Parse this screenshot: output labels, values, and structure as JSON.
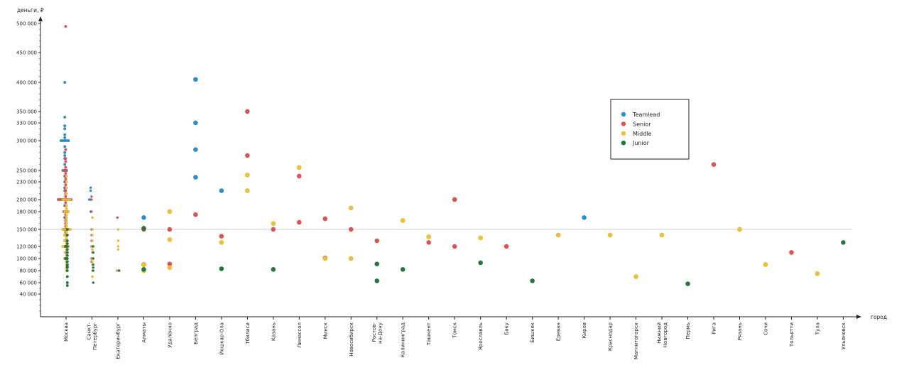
{
  "chart_data": {
    "type": "scatter",
    "title": "",
    "xlabel": "город",
    "ylabel": "деньги, ₽",
    "ylim": [
      0,
      510000
    ],
    "y_ticks": [
      40000,
      60000,
      80000,
      100000,
      120000,
      150000,
      180000,
      200000,
      230000,
      250000,
      300000,
      330000,
      350000,
      400000,
      450000,
      500000
    ],
    "y_tick_labels": [
      "40 000",
      "60 000",
      "80 000",
      "100 000",
      "120 000",
      "150 000",
      "180 000",
      "200 000",
      "230 000",
      "250 000",
      "300 000",
      "330 000",
      "350 000",
      "400 000",
      "450 000",
      "500 000"
    ],
    "y_scale": "piecewise-linear between labeled ticks",
    "reference_line": 150000,
    "grid": false,
    "legend_position": "upper-right",
    "categories": [
      "Москва",
      "Санкт-Петербург",
      "Екатеринбург",
      "Алматы",
      "Удалённо",
      "Белград",
      "Йошкар-Ола",
      "Тбилиси",
      "Казань",
      "Лимассол",
      "Минск",
      "Новосибирск",
      "Ростов-на-Дону",
      "Калининград",
      "Ташкент",
      "Томск",
      "Ярославль",
      "Баку",
      "Бишкек",
      "Ереван",
      "Киров",
      "Краснодар",
      "Магнитогорск",
      "Нижний Новгород",
      "Пермь",
      "Рига",
      "Рязань",
      "Сочи",
      "Тольятти",
      "Тула",
      "Ульяновск"
    ],
    "category_labels": [
      [
        "Москва"
      ],
      [
        "Санкт-",
        "Петербург"
      ],
      [
        "Екатеринбург"
      ],
      [
        "Алматы"
      ],
      [
        "Удалённо"
      ],
      [
        "Белград"
      ],
      [
        "Йошкар-Ола"
      ],
      [
        "Тбилиси"
      ],
      [
        "Казань"
      ],
      [
        "Лимассол"
      ],
      [
        "Минск"
      ],
      [
        "Новосибирск"
      ],
      [
        "Ростов-",
        "на-Дону"
      ],
      [
        "Калининград"
      ],
      [
        "Ташкент"
      ],
      [
        "Томск"
      ],
      [
        "Ярославль"
      ],
      [
        "Баку"
      ],
      [
        "Бишкек"
      ],
      [
        "Ереван"
      ],
      [
        "Киров"
      ],
      [
        "Краснодар"
      ],
      [
        "Магнитогорск"
      ],
      [
        "Нижний",
        "Новгород"
      ],
      [
        "Пермь"
      ],
      [
        "Рига"
      ],
      [
        "Рязань"
      ],
      [
        "Сочи"
      ],
      [
        "Тольятти"
      ],
      [
        "Тула"
      ],
      [
        "Ульяновск"
      ]
    ],
    "dense_categories": [
      "Москва",
      "Санкт-Петербург",
      "Екатеринбург"
    ],
    "series": [
      {
        "name": "Teamlead",
        "color": "#2a8fcf",
        "points": [
          [
            "Москва",
            400000
          ],
          [
            "Москва",
            340000
          ],
          [
            "Москва",
            325000
          ],
          [
            "Москва",
            320000
          ],
          [
            "Москва",
            310000
          ],
          [
            "Москва",
            305000
          ],
          [
            "Москва",
            300000
          ],
          [
            "Москва",
            300000
          ],
          [
            "Москва",
            300000
          ],
          [
            "Москва",
            300000
          ],
          [
            "Москва",
            300000
          ],
          [
            "Москва",
            290000
          ],
          [
            "Москва",
            280000
          ],
          [
            "Москва",
            275000
          ],
          [
            "Москва",
            270000
          ],
          [
            "Москва",
            260000
          ],
          [
            "Москва",
            250000
          ],
          [
            "Москва",
            250000
          ],
          [
            "Москва",
            250000
          ],
          [
            "Москва",
            240000
          ],
          [
            "Москва",
            230000
          ],
          [
            "Москва",
            220000
          ],
          [
            "Москва",
            215000
          ],
          [
            "Москва",
            200000
          ],
          [
            "Москва",
            200000
          ],
          [
            "Москва",
            200000
          ],
          [
            "Москва",
            190000
          ],
          [
            "Москва",
            180000
          ],
          [
            "Москва",
            170000
          ],
          [
            "Москва",
            150000
          ],
          [
            "Санкт-Петербург",
            220000
          ],
          [
            "Санкт-Петербург",
            215000
          ],
          [
            "Санкт-Петербург",
            200000
          ],
          [
            "Санкт-Петербург",
            200000
          ],
          [
            "Санкт-Петербург",
            180000
          ],
          [
            "Алматы",
            170000
          ],
          [
            "Белград",
            405000
          ],
          [
            "Белград",
            330000
          ],
          [
            "Белград",
            285000
          ],
          [
            "Белград",
            238000
          ],
          [
            "Йошкар-Ола",
            215000
          ],
          [
            "Киров",
            170000
          ]
        ]
      },
      {
        "name": "Senior",
        "color": "#e05252",
        "points": [
          [
            "Москва",
            495000
          ],
          [
            "Москва",
            285000
          ],
          [
            "Москва",
            270000
          ],
          [
            "Москва",
            265000
          ],
          [
            "Москва",
            255000
          ],
          [
            "Москва",
            250000
          ],
          [
            "Москва",
            250000
          ],
          [
            "Москва",
            245000
          ],
          [
            "Москва",
            240000
          ],
          [
            "Москва",
            235000
          ],
          [
            "Москва",
            230000
          ],
          [
            "Москва",
            225000
          ],
          [
            "Москва",
            220000
          ],
          [
            "Москва",
            215000
          ],
          [
            "Москва",
            210000
          ],
          [
            "Москва",
            205000
          ],
          [
            "Москва",
            200000
          ],
          [
            "Москва",
            200000
          ],
          [
            "Москва",
            200000
          ],
          [
            "Москва",
            200000
          ],
          [
            "Москва",
            200000
          ],
          [
            "Москва",
            200000
          ],
          [
            "Москва",
            200000
          ],
          [
            "Москва",
            200000
          ],
          [
            "Москва",
            195000
          ],
          [
            "Москва",
            190000
          ],
          [
            "Москва",
            180000
          ],
          [
            "Москва",
            180000
          ],
          [
            "Москва",
            180000
          ],
          [
            "Москва",
            175000
          ],
          [
            "Москва",
            170000
          ],
          [
            "Москва",
            165000
          ],
          [
            "Москва",
            160000
          ],
          [
            "Москва",
            155000
          ],
          [
            "Москва",
            150000
          ],
          [
            "Москва",
            150000
          ],
          [
            "Москва",
            145000
          ],
          [
            "Москва",
            140000
          ],
          [
            "Москва",
            130000
          ],
          [
            "Москва",
            120000
          ],
          [
            "Москва",
            110000
          ],
          [
            "Москва",
            100000
          ],
          [
            "Санкт-Петербург",
            205000
          ],
          [
            "Санкт-Петербург",
            200000
          ],
          [
            "Санкт-Петербург",
            180000
          ],
          [
            "Санкт-Петербург",
            150000
          ],
          [
            "Санкт-Петербург",
            140000
          ],
          [
            "Санкт-Петербург",
            130000
          ],
          [
            "Санкт-Петербург",
            120000
          ],
          [
            "Санкт-Петербург",
            100000
          ],
          [
            "Санкт-Петербург",
            95000
          ],
          [
            "Екатеринбург",
            170000
          ],
          [
            "Екатеринбург",
            80000
          ],
          [
            "Алматы",
            150000
          ],
          [
            "Алматы",
            90000
          ],
          [
            "Удалённо",
            150000
          ],
          [
            "Удалённо",
            91000
          ],
          [
            "Белград",
            175000
          ],
          [
            "Йошкар-Ола",
            138000
          ],
          [
            "Тбилиси",
            350000
          ],
          [
            "Тбилиси",
            275000
          ],
          [
            "Казань",
            150000
          ],
          [
            "Лимассол",
            240000
          ],
          [
            "Лимассол",
            162000
          ],
          [
            "Минск",
            168000
          ],
          [
            "Минск",
            101000
          ],
          [
            "Новосибирск",
            150000
          ],
          [
            "Ростов-на-Дону",
            130000
          ],
          [
            "Ташкент",
            127000
          ],
          [
            "Томск",
            200000
          ],
          [
            "Томск",
            120000
          ],
          [
            "Баку",
            120000
          ],
          [
            "Рига",
            260000
          ],
          [
            "Тольятти",
            110000
          ]
        ]
      },
      {
        "name": "Middle",
        "color": "#f2c12e",
        "points": [
          [
            "Москва",
            240000
          ],
          [
            "Москва",
            230000
          ],
          [
            "Москва",
            220000
          ],
          [
            "Москва",
            210000
          ],
          [
            "Москва",
            200000
          ],
          [
            "Москва",
            200000
          ],
          [
            "Москва",
            200000
          ],
          [
            "Москва",
            200000
          ],
          [
            "Москва",
            200000
          ],
          [
            "Москва",
            190000
          ],
          [
            "Москва",
            185000
          ],
          [
            "Москва",
            180000
          ],
          [
            "Москва",
            180000
          ],
          [
            "Москва",
            180000
          ],
          [
            "Москва",
            175000
          ],
          [
            "Москва",
            170000
          ],
          [
            "Москва",
            165000
          ],
          [
            "Москва",
            160000
          ],
          [
            "Москва",
            155000
          ],
          [
            "Москва",
            150000
          ],
          [
            "Москва",
            150000
          ],
          [
            "Москва",
            150000
          ],
          [
            "Москва",
            150000
          ],
          [
            "Москва",
            150000
          ],
          [
            "Москва",
            145000
          ],
          [
            "Москва",
            140000
          ],
          [
            "Москва",
            140000
          ],
          [
            "Москва",
            135000
          ],
          [
            "Москва",
            130000
          ],
          [
            "Москва",
            130000
          ],
          [
            "Москва",
            125000
          ],
          [
            "Москва",
            120000
          ],
          [
            "Москва",
            120000
          ],
          [
            "Москва",
            120000
          ],
          [
            "Москва",
            120000
          ],
          [
            "Москва",
            115000
          ],
          [
            "Москва",
            110000
          ],
          [
            "Москва",
            105000
          ],
          [
            "Москва",
            100000
          ],
          [
            "Москва",
            100000
          ],
          [
            "Москва",
            95000
          ],
          [
            "Москва",
            90000
          ],
          [
            "Москва",
            85000
          ],
          [
            "Москва",
            80000
          ],
          [
            "Санкт-Петербург",
            170000
          ],
          [
            "Санкт-Петербург",
            150000
          ],
          [
            "Санкт-Петербург",
            140000
          ],
          [
            "Санкт-Петербург",
            130000
          ],
          [
            "Санкт-Петербург",
            120000
          ],
          [
            "Санкт-Петербург",
            115000
          ],
          [
            "Санкт-Петербург",
            110000
          ],
          [
            "Санкт-Петербург",
            100000
          ],
          [
            "Санкт-Петербург",
            95000
          ],
          [
            "Санкт-Петербург",
            90000
          ],
          [
            "Санкт-Петербург",
            80000
          ],
          [
            "Санкт-Петербург",
            70000
          ],
          [
            "Екатеринбург",
            150000
          ],
          [
            "Екатеринбург",
            130000
          ],
          [
            "Екатеринбург",
            120000
          ],
          [
            "Екатеринбург",
            115000
          ],
          [
            "Екатеринбург",
            80000
          ],
          [
            "Алматы",
            90000
          ],
          [
            "Алматы",
            80000
          ],
          [
            "Удалённо",
            180000
          ],
          [
            "Удалённо",
            132000
          ],
          [
            "Удалённо",
            85000
          ],
          [
            "Йошкар-Ола",
            127000
          ],
          [
            "Тбилиси",
            242000
          ],
          [
            "Тбилиси",
            215000
          ],
          [
            "Казань",
            160000
          ],
          [
            "Лимассол",
            255000
          ],
          [
            "Минск",
            100000
          ],
          [
            "Новосибирск",
            186000
          ],
          [
            "Новосибирск",
            100000
          ],
          [
            "Калининград",
            165000
          ],
          [
            "Ташкент",
            137000
          ],
          [
            "Ярославль",
            135000
          ],
          [
            "Ереван",
            140000
          ],
          [
            "Краснодар",
            140000
          ],
          [
            "Магнитогорск",
            70000
          ],
          [
            "Нижний Новгород",
            140000
          ],
          [
            "Рязань",
            150000
          ],
          [
            "Сочи",
            90000
          ],
          [
            "Тула",
            75000
          ]
        ]
      },
      {
        "name": "Junior",
        "color": "#1e7a34",
        "points": [
          [
            "Москва",
            150000
          ],
          [
            "Москва",
            140000
          ],
          [
            "Москва",
            130000
          ],
          [
            "Москва",
            125000
          ],
          [
            "Москва",
            120000
          ],
          [
            "Москва",
            120000
          ],
          [
            "Москва",
            115000
          ],
          [
            "Москва",
            110000
          ],
          [
            "Москва",
            105000
          ],
          [
            "Москва",
            100000
          ],
          [
            "Москва",
            100000
          ],
          [
            "Москва",
            95000
          ],
          [
            "Москва",
            90000
          ],
          [
            "Москва",
            85000
          ],
          [
            "Москва",
            80000
          ],
          [
            "Москва",
            70000
          ],
          [
            "Москва",
            60000
          ],
          [
            "Москва",
            55000
          ],
          [
            "Москва",
            87000
          ],
          [
            "Санкт-Петербург",
            120000
          ],
          [
            "Санкт-Петербург",
            110000
          ],
          [
            "Санкт-Петербург",
            100000
          ],
          [
            "Санкт-Петербург",
            90000
          ],
          [
            "Санкт-Петербург",
            85000
          ],
          [
            "Санкт-Петербург",
            80000
          ],
          [
            "Санкт-Петербург",
            60000
          ],
          [
            "Екатеринбург",
            80000
          ],
          [
            "Алматы",
            152000
          ],
          [
            "Алматы",
            82000
          ],
          [
            "Йошкар-Ола",
            83000
          ],
          [
            "Казань",
            82000
          ],
          [
            "Ростов-на-Дону",
            91000
          ],
          [
            "Ростов-на-Дону",
            63000
          ],
          [
            "Калининград",
            82000
          ],
          [
            "Ярославль",
            93000
          ],
          [
            "Бишкек",
            63000
          ],
          [
            "Пермь",
            58000
          ],
          [
            "Ульяновск",
            127000
          ]
        ]
      }
    ]
  }
}
